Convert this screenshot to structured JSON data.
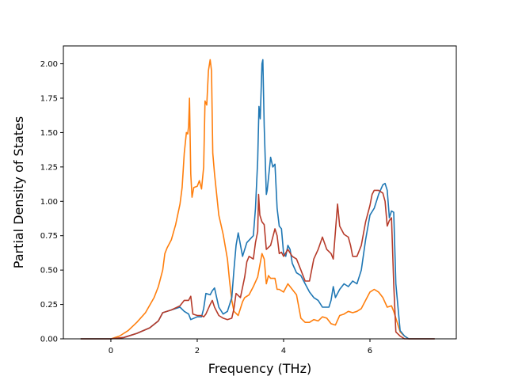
{
  "chart_data": {
    "type": "line",
    "title": "",
    "xlabel": "Frequency (THz)",
    "ylabel": "Partial Density of States",
    "xlim": [
      -1.1,
      8.0
    ],
    "ylim": [
      0.0,
      2.13
    ],
    "xticks": [
      0,
      2,
      4,
      6
    ],
    "yticks": [
      0.0,
      0.25,
      0.5,
      0.75,
      1.0,
      1.25,
      1.5,
      1.75,
      2.0
    ],
    "xtick_labels": [
      "0",
      "2",
      "4",
      "6"
    ],
    "ytick_labels": [
      "0.00",
      "0.25",
      "0.50",
      "0.75",
      "1.00",
      "1.25",
      "1.50",
      "1.75",
      "2.00"
    ],
    "grid": false,
    "series": [
      {
        "color": "#ff7f0e",
        "points": [
          [
            -0.7,
            0
          ],
          [
            -0.2,
            0
          ],
          [
            0,
            0
          ],
          [
            0.2,
            0.02
          ],
          [
            0.4,
            0.06
          ],
          [
            0.6,
            0.12
          ],
          [
            0.8,
            0.19
          ],
          [
            1.0,
            0.3
          ],
          [
            1.1,
            0.38
          ],
          [
            1.2,
            0.5
          ],
          [
            1.25,
            0.62
          ],
          [
            1.3,
            0.66
          ],
          [
            1.4,
            0.72
          ],
          [
            1.5,
            0.83
          ],
          [
            1.6,
            0.98
          ],
          [
            1.65,
            1.1
          ],
          [
            1.7,
            1.35
          ],
          [
            1.75,
            1.5
          ],
          [
            1.78,
            1.49
          ],
          [
            1.8,
            1.55
          ],
          [
            1.82,
            1.75
          ],
          [
            1.85,
            1.2
          ],
          [
            1.88,
            1.03
          ],
          [
            1.92,
            1.1
          ],
          [
            2.0,
            1.11
          ],
          [
            2.05,
            1.15
          ],
          [
            2.1,
            1.09
          ],
          [
            2.15,
            1.25
          ],
          [
            2.18,
            1.73
          ],
          [
            2.22,
            1.7
          ],
          [
            2.26,
            1.95
          ],
          [
            2.3,
            2.03
          ],
          [
            2.33,
            1.95
          ],
          [
            2.36,
            1.35
          ],
          [
            2.4,
            1.2
          ],
          [
            2.45,
            1.05
          ],
          [
            2.5,
            0.9
          ],
          [
            2.6,
            0.76
          ],
          [
            2.7,
            0.58
          ],
          [
            2.75,
            0.42
          ],
          [
            2.8,
            0.28
          ],
          [
            2.85,
            0.2
          ],
          [
            2.95,
            0.17
          ],
          [
            3.05,
            0.27
          ],
          [
            3.1,
            0.3
          ],
          [
            3.2,
            0.32
          ],
          [
            3.3,
            0.38
          ],
          [
            3.4,
            0.45
          ],
          [
            3.5,
            0.62
          ],
          [
            3.55,
            0.58
          ],
          [
            3.6,
            0.4
          ],
          [
            3.65,
            0.46
          ],
          [
            3.7,
            0.44
          ],
          [
            3.8,
            0.44
          ],
          [
            3.85,
            0.36
          ],
          [
            3.9,
            0.36
          ],
          [
            4.0,
            0.34
          ],
          [
            4.1,
            0.4
          ],
          [
            4.2,
            0.36
          ],
          [
            4.3,
            0.32
          ],
          [
            4.4,
            0.15
          ],
          [
            4.5,
            0.12
          ],
          [
            4.6,
            0.12
          ],
          [
            4.7,
            0.14
          ],
          [
            4.8,
            0.13
          ],
          [
            4.9,
            0.16
          ],
          [
            5.0,
            0.15
          ],
          [
            5.1,
            0.11
          ],
          [
            5.2,
            0.1
          ],
          [
            5.3,
            0.17
          ],
          [
            5.4,
            0.18
          ],
          [
            5.5,
            0.2
          ],
          [
            5.6,
            0.19
          ],
          [
            5.7,
            0.2
          ],
          [
            5.8,
            0.22
          ],
          [
            5.9,
            0.28
          ],
          [
            6.0,
            0.34
          ],
          [
            6.1,
            0.36
          ],
          [
            6.2,
            0.34
          ],
          [
            6.3,
            0.3
          ],
          [
            6.4,
            0.23
          ],
          [
            6.5,
            0.24
          ],
          [
            6.55,
            0.2
          ],
          [
            6.6,
            0.15
          ],
          [
            6.7,
            0.05
          ],
          [
            6.8,
            0.02
          ],
          [
            6.9,
            0
          ],
          [
            7.2,
            0
          ],
          [
            7.5,
            0
          ]
        ]
      },
      {
        "color": "#1f77b4",
        "points": [
          [
            -0.7,
            0
          ],
          [
            -0.2,
            0
          ],
          [
            0,
            0
          ],
          [
            0.3,
            0.01
          ],
          [
            0.6,
            0.04
          ],
          [
            0.9,
            0.08
          ],
          [
            1.1,
            0.13
          ],
          [
            1.2,
            0.19
          ],
          [
            1.4,
            0.21
          ],
          [
            1.6,
            0.23
          ],
          [
            1.7,
            0.2
          ],
          [
            1.8,
            0.18
          ],
          [
            1.85,
            0.14
          ],
          [
            2.0,
            0.16
          ],
          [
            2.1,
            0.16
          ],
          [
            2.15,
            0.22
          ],
          [
            2.2,
            0.33
          ],
          [
            2.3,
            0.32
          ],
          [
            2.35,
            0.35
          ],
          [
            2.4,
            0.37
          ],
          [
            2.45,
            0.3
          ],
          [
            2.5,
            0.23
          ],
          [
            2.6,
            0.18
          ],
          [
            2.7,
            0.2
          ],
          [
            2.8,
            0.3
          ],
          [
            2.85,
            0.5
          ],
          [
            2.9,
            0.68
          ],
          [
            2.95,
            0.77
          ],
          [
            3.05,
            0.6
          ],
          [
            3.15,
            0.7
          ],
          [
            3.3,
            0.75
          ],
          [
            3.35,
            0.95
          ],
          [
            3.4,
            1.3
          ],
          [
            3.43,
            1.69
          ],
          [
            3.46,
            1.6
          ],
          [
            3.5,
            2.0
          ],
          [
            3.52,
            2.03
          ],
          [
            3.55,
            1.55
          ],
          [
            3.6,
            1.05
          ],
          [
            3.62,
            1.08
          ],
          [
            3.7,
            1.32
          ],
          [
            3.75,
            1.25
          ],
          [
            3.8,
            1.27
          ],
          [
            3.85,
            0.95
          ],
          [
            3.9,
            0.82
          ],
          [
            3.95,
            0.8
          ],
          [
            4.0,
            0.62
          ],
          [
            4.05,
            0.6
          ],
          [
            4.1,
            0.68
          ],
          [
            4.15,
            0.65
          ],
          [
            4.2,
            0.55
          ],
          [
            4.3,
            0.48
          ],
          [
            4.4,
            0.46
          ],
          [
            4.5,
            0.4
          ],
          [
            4.6,
            0.34
          ],
          [
            4.7,
            0.3
          ],
          [
            4.8,
            0.28
          ],
          [
            4.9,
            0.23
          ],
          [
            5.05,
            0.23
          ],
          [
            5.1,
            0.28
          ],
          [
            5.15,
            0.38
          ],
          [
            5.2,
            0.3
          ],
          [
            5.3,
            0.36
          ],
          [
            5.4,
            0.4
          ],
          [
            5.5,
            0.38
          ],
          [
            5.6,
            0.42
          ],
          [
            5.7,
            0.4
          ],
          [
            5.8,
            0.5
          ],
          [
            5.9,
            0.72
          ],
          [
            6.0,
            0.9
          ],
          [
            6.1,
            0.95
          ],
          [
            6.15,
            1.0
          ],
          [
            6.2,
            1.05
          ],
          [
            6.3,
            1.12
          ],
          [
            6.35,
            1.13
          ],
          [
            6.4,
            1.08
          ],
          [
            6.45,
            0.88
          ],
          [
            6.5,
            0.93
          ],
          [
            6.55,
            0.92
          ],
          [
            6.6,
            0.4
          ],
          [
            6.7,
            0.06
          ],
          [
            6.8,
            0.02
          ],
          [
            6.9,
            0
          ],
          [
            7.2,
            0
          ],
          [
            7.5,
            0
          ]
        ]
      },
      {
        "color": "#b63b2a",
        "points": [
          [
            -0.7,
            0
          ],
          [
            -0.2,
            0
          ],
          [
            0,
            0
          ],
          [
            0.3,
            0.01
          ],
          [
            0.6,
            0.04
          ],
          [
            0.9,
            0.08
          ],
          [
            1.1,
            0.13
          ],
          [
            1.2,
            0.19
          ],
          [
            1.4,
            0.21
          ],
          [
            1.6,
            0.24
          ],
          [
            1.7,
            0.28
          ],
          [
            1.8,
            0.28
          ],
          [
            1.85,
            0.31
          ],
          [
            1.9,
            0.18
          ],
          [
            2.0,
            0.17
          ],
          [
            2.1,
            0.17
          ],
          [
            2.15,
            0.16
          ],
          [
            2.2,
            0.18
          ],
          [
            2.3,
            0.25
          ],
          [
            2.35,
            0.28
          ],
          [
            2.4,
            0.23
          ],
          [
            2.5,
            0.17
          ],
          [
            2.6,
            0.15
          ],
          [
            2.7,
            0.14
          ],
          [
            2.8,
            0.15
          ],
          [
            2.85,
            0.22
          ],
          [
            2.9,
            0.33
          ],
          [
            3.0,
            0.3
          ],
          [
            3.1,
            0.45
          ],
          [
            3.15,
            0.56
          ],
          [
            3.2,
            0.6
          ],
          [
            3.3,
            0.58
          ],
          [
            3.35,
            0.7
          ],
          [
            3.4,
            0.78
          ],
          [
            3.42,
            1.05
          ],
          [
            3.45,
            0.9
          ],
          [
            3.5,
            0.85
          ],
          [
            3.55,
            0.83
          ],
          [
            3.6,
            0.65
          ],
          [
            3.7,
            0.68
          ],
          [
            3.8,
            0.8
          ],
          [
            3.85,
            0.75
          ],
          [
            3.9,
            0.62
          ],
          [
            3.95,
            0.63
          ],
          [
            4.0,
            0.6
          ],
          [
            4.1,
            0.65
          ],
          [
            4.2,
            0.6
          ],
          [
            4.3,
            0.58
          ],
          [
            4.4,
            0.5
          ],
          [
            4.5,
            0.42
          ],
          [
            4.6,
            0.42
          ],
          [
            4.7,
            0.58
          ],
          [
            4.8,
            0.65
          ],
          [
            4.9,
            0.74
          ],
          [
            5.0,
            0.65
          ],
          [
            5.1,
            0.62
          ],
          [
            5.15,
            0.58
          ],
          [
            5.2,
            0.78
          ],
          [
            5.25,
            0.98
          ],
          [
            5.3,
            0.82
          ],
          [
            5.4,
            0.76
          ],
          [
            5.5,
            0.74
          ],
          [
            5.55,
            0.68
          ],
          [
            5.6,
            0.6
          ],
          [
            5.7,
            0.6
          ],
          [
            5.8,
            0.68
          ],
          [
            5.9,
            0.85
          ],
          [
            6.0,
            0.97
          ],
          [
            6.05,
            1.05
          ],
          [
            6.1,
            1.08
          ],
          [
            6.2,
            1.08
          ],
          [
            6.3,
            1.06
          ],
          [
            6.35,
            1.0
          ],
          [
            6.4,
            0.82
          ],
          [
            6.45,
            0.86
          ],
          [
            6.5,
            0.88
          ],
          [
            6.55,
            0.4
          ],
          [
            6.6,
            0.05
          ],
          [
            6.7,
            0.02
          ],
          [
            6.8,
            0
          ],
          [
            7.2,
            0
          ],
          [
            7.5,
            0
          ]
        ]
      }
    ]
  }
}
